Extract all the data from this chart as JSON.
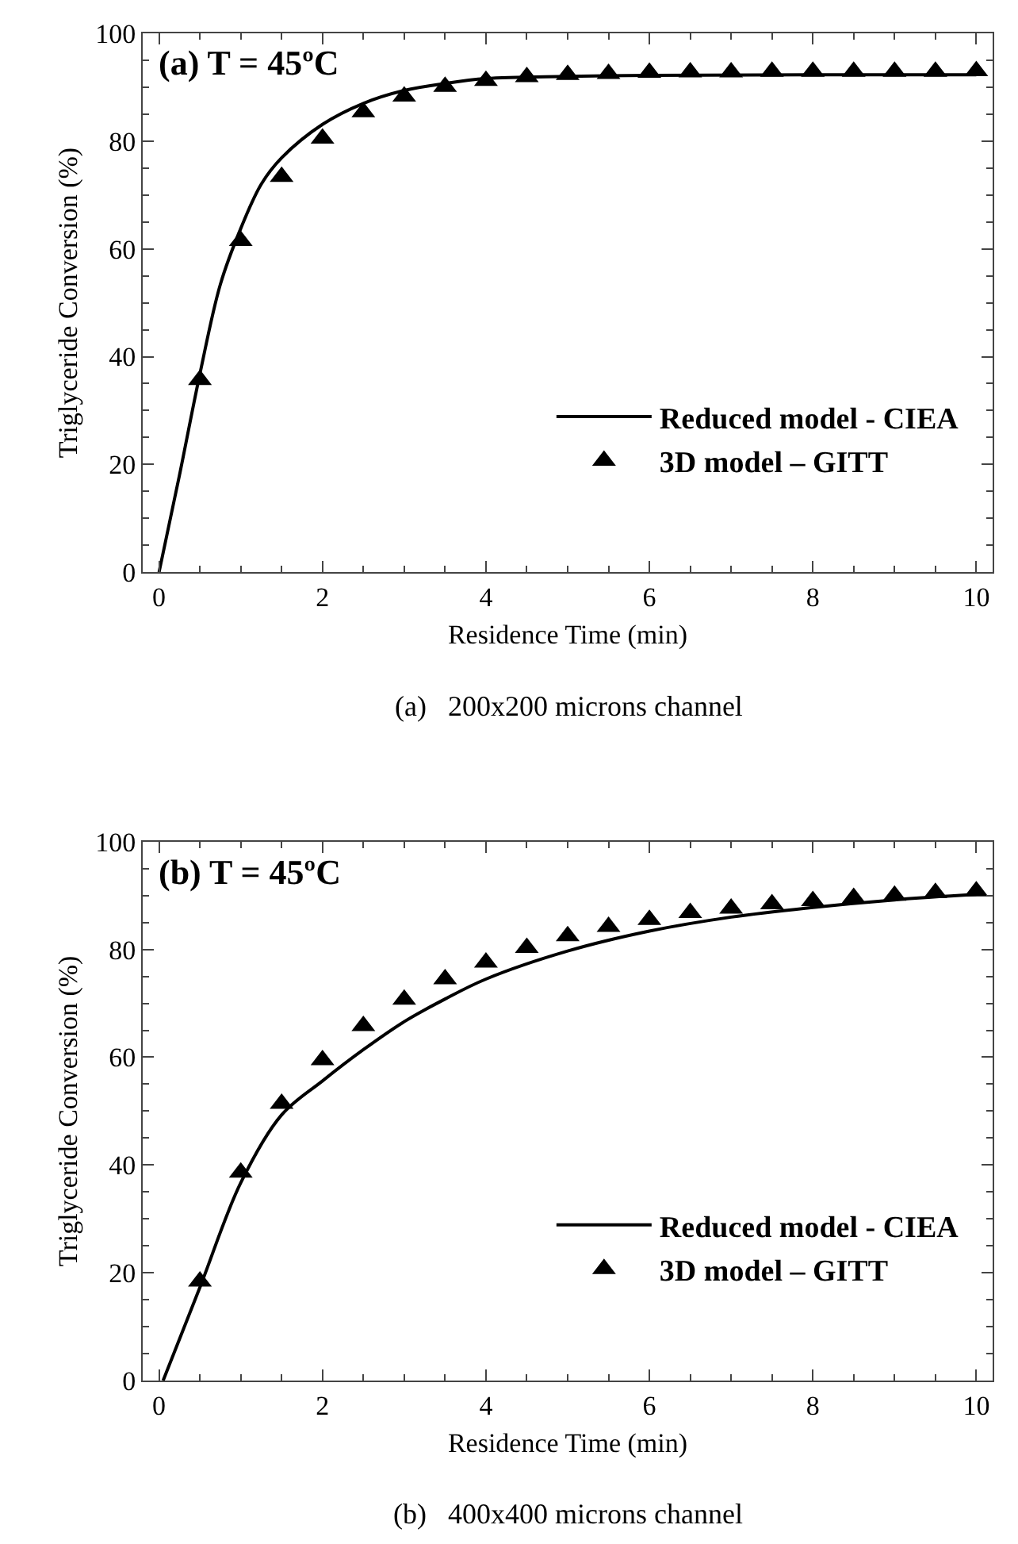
{
  "chart_data": [
    {
      "type": "line",
      "title": "(a) T = 45ºC",
      "xlabel": "Residence Time (min)",
      "ylabel": "Triglyceride Conversion (%)",
      "annotations": [
        "(a)   200x200 microns channel"
      ],
      "xlim": [
        -0.2,
        10.2
      ],
      "ylim": [
        0,
        100
      ],
      "xticks": [
        0,
        2,
        4,
        6,
        8,
        10
      ],
      "yticks": [
        0,
        20,
        40,
        60,
        80,
        100
      ],
      "grid": false,
      "legend": "bottom right",
      "series": [
        {
          "name": "Reduced model - CIEA",
          "color": "#000000",
          "line_style": "solid",
          "x": [
            0,
            0.25,
            0.5,
            0.75,
            1,
            1.25,
            1.5,
            2,
            2.5,
            3,
            3.5,
            4,
            5,
            6,
            8,
            10
          ],
          "values": [
            0,
            18,
            36.8,
            53.4,
            63.8,
            72,
            76.9,
            83.1,
            87,
            89.4,
            90.7,
            91.6,
            92,
            92.2,
            92.3,
            92.3
          ]
        },
        {
          "name": "3D model – GITT",
          "type": "scatter",
          "marker": "triangle",
          "color": "#000000",
          "x": [
            0.5,
            1,
            1.5,
            2,
            2.5,
            3,
            3.5,
            4,
            4.5,
            5,
            5.5,
            6,
            6.5,
            7,
            7.5,
            8,
            8.5,
            9,
            9.5,
            10
          ],
          "values": [
            35.7,
            61.5,
            73.4,
            80.5,
            85.4,
            88.3,
            90.1,
            91.2,
            91.9,
            92.3,
            92.5,
            92.7,
            92.8,
            92.8,
            92.9,
            92.9,
            92.9,
            92.9,
            92.9,
            93
          ]
        }
      ]
    },
    {
      "type": "line",
      "title": "(b) T = 45ºC",
      "xlabel": "Residence Time (min)",
      "ylabel": "Triglyceride Conversion (%)",
      "annotations": [
        "(b)   400x400 microns channel"
      ],
      "xlim": [
        -0.2,
        10.2
      ],
      "ylim": [
        0,
        100
      ],
      "xticks": [
        0,
        2,
        4,
        6,
        8,
        10
      ],
      "yticks": [
        0,
        20,
        40,
        60,
        80,
        100
      ],
      "grid": false,
      "legend": "bottom right",
      "series": [
        {
          "name": "Reduced model - CIEA",
          "color": "#000000",
          "line_style": "solid",
          "x": [
            0.05,
            0.5,
            1,
            1.5,
            2,
            2.5,
            3,
            3.5,
            4,
            5,
            6,
            7,
            8,
            9,
            10
          ],
          "values": [
            0,
            17.3,
            36.7,
            49.3,
            55.6,
            61.4,
            66.6,
            70.8,
            74.5,
            79.7,
            83.4,
            86,
            87.8,
            89.2,
            90.2
          ]
        },
        {
          "name": "3D model – GITT",
          "type": "scatter",
          "marker": "triangle",
          "color": "#000000",
          "x": [
            0.5,
            1,
            1.5,
            2,
            2.5,
            3,
            3.5,
            4,
            4.5,
            5,
            5.5,
            6,
            6.5,
            7,
            7.5,
            8,
            8.5,
            9,
            9.5,
            10
          ],
          "values": [
            18.4,
            38.6,
            51.4,
            59.5,
            65.8,
            70.7,
            74.5,
            77.6,
            80.3,
            82.5,
            84.2,
            85.5,
            86.8,
            87.6,
            88.4,
            89,
            89.6,
            90,
            90.5,
            90.8
          ]
        }
      ]
    }
  ]
}
